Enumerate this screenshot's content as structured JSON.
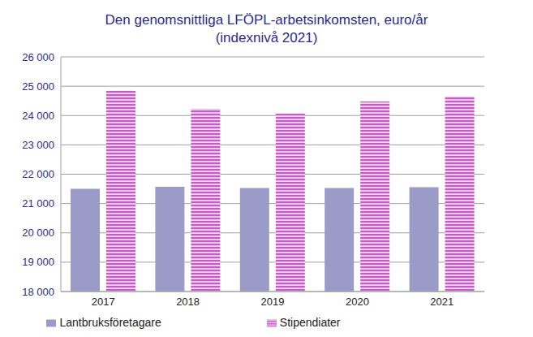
{
  "chart_data": {
    "type": "bar",
    "title": "Den genomsnittliga LFÖPL-arbetsinkomsten, euro/år",
    "subtitle": "(indexnivå 2021)",
    "categories": [
      "2017",
      "2018",
      "2019",
      "2020",
      "2021"
    ],
    "series": [
      {
        "name": "Lantbruksföretagare",
        "color": "#9b9bc8",
        "values": [
          21500,
          21570,
          21530,
          21530,
          21560
        ]
      },
      {
        "name": "Stipendiater",
        "color": "#c45ec4",
        "values": [
          24850,
          24230,
          24060,
          24480,
          24650
        ]
      }
    ],
    "ylim": [
      18000,
      26000
    ],
    "yticks": [
      {
        "value": 18000,
        "label": "18 000"
      },
      {
        "value": 19000,
        "label": "19 000"
      },
      {
        "value": 20000,
        "label": "20 000"
      },
      {
        "value": 21000,
        "label": "21 000"
      },
      {
        "value": 22000,
        "label": "22 000"
      },
      {
        "value": 23000,
        "label": "23 000"
      },
      {
        "value": 24000,
        "label": "24 000"
      },
      {
        "value": 25000,
        "label": "25 000"
      },
      {
        "value": 26000,
        "label": "26 000"
      }
    ],
    "grid": true,
    "legend": "bottom"
  }
}
